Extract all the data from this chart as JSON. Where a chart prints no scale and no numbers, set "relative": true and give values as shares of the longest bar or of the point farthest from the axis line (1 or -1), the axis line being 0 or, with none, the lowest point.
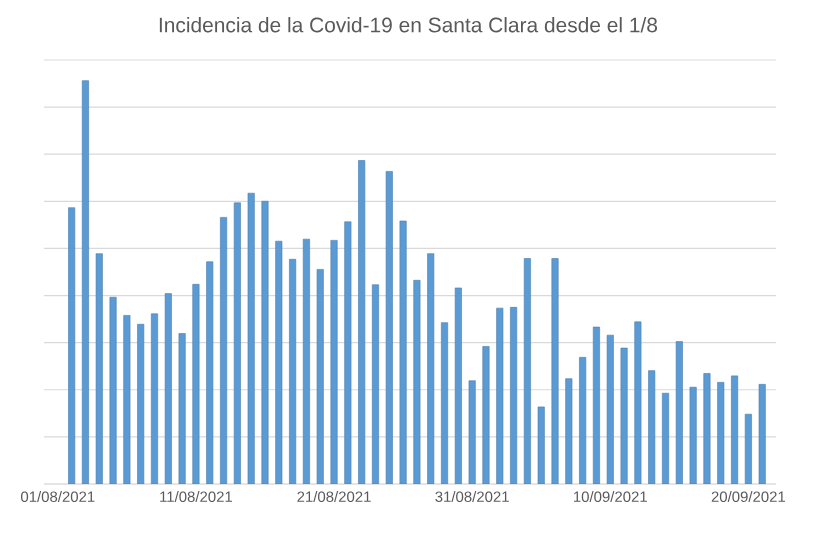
{
  "chart_data": {
    "type": "bar",
    "title": "Incidencia de la Covid-19 en Santa Clara desde el 1/8",
    "relative": true,
    "grid": "y",
    "color": "#5b9bd5",
    "categories": [
      "01/08/2021",
      null,
      null,
      null,
      null,
      null,
      null,
      null,
      null,
      null,
      "11/08/2021",
      null,
      null,
      null,
      null,
      null,
      null,
      null,
      null,
      null,
      "21/08/2021",
      null,
      null,
      null,
      null,
      null,
      null,
      null,
      null,
      null,
      "31/08/2021",
      null,
      null,
      null,
      null,
      null,
      null,
      null,
      null,
      null,
      "10/09/2021",
      null,
      null,
      null,
      null,
      null,
      null,
      null,
      null,
      null,
      "20/09/2021",
      null
    ],
    "values": [
      null,
      0.685,
      1.0,
      0.571,
      0.463,
      0.418,
      0.396,
      0.422,
      0.472,
      0.373,
      0.495,
      0.551,
      0.661,
      0.697,
      0.721,
      0.701,
      0.602,
      0.557,
      0.607,
      0.532,
      0.604,
      0.65,
      0.802,
      0.494,
      0.775,
      0.652,
      0.505,
      0.571,
      0.4,
      0.486,
      0.256,
      0.341,
      0.436,
      0.438,
      0.559,
      0.191,
      0.559,
      0.261,
      0.314,
      0.389,
      0.369,
      0.337,
      0.402,
      0.281,
      0.225,
      0.353,
      0.24,
      0.274,
      0.252,
      0.268,
      0.173,
      0.247
    ]
  }
}
